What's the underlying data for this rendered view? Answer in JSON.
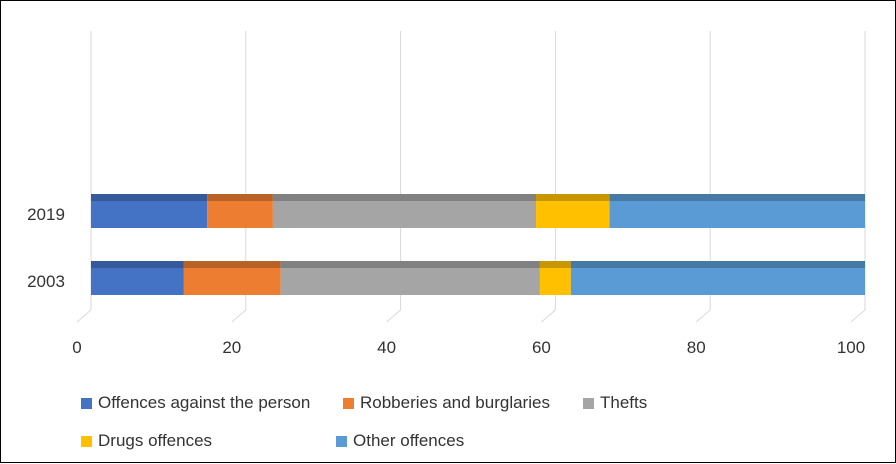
{
  "chart_data": {
    "type": "bar",
    "orientation": "horizontal",
    "stacked": true,
    "style": "3d",
    "categories": [
      "2019",
      "2003"
    ],
    "series": [
      {
        "name": "Offences against the person",
        "color": "#4472C4",
        "values": [
          15,
          12
        ]
      },
      {
        "name": "Robberies and burglaries",
        "color": "#ED7D31",
        "values": [
          8.5,
          12.5
        ]
      },
      {
        "name": "Thefts",
        "color": "#A5A5A5",
        "values": [
          34,
          33.5
        ]
      },
      {
        "name": "Drugs offences",
        "color": "#FFC000",
        "values": [
          9.5,
          4
        ]
      },
      {
        "name": "Other offences",
        "color": "#5B9BD5",
        "values": [
          33,
          38
        ]
      }
    ],
    "xlim": [
      0,
      100
    ],
    "xticks": [
      "0",
      "20",
      "40",
      "60",
      "80",
      "100"
    ],
    "grid": true,
    "legend_position": "bottom"
  }
}
